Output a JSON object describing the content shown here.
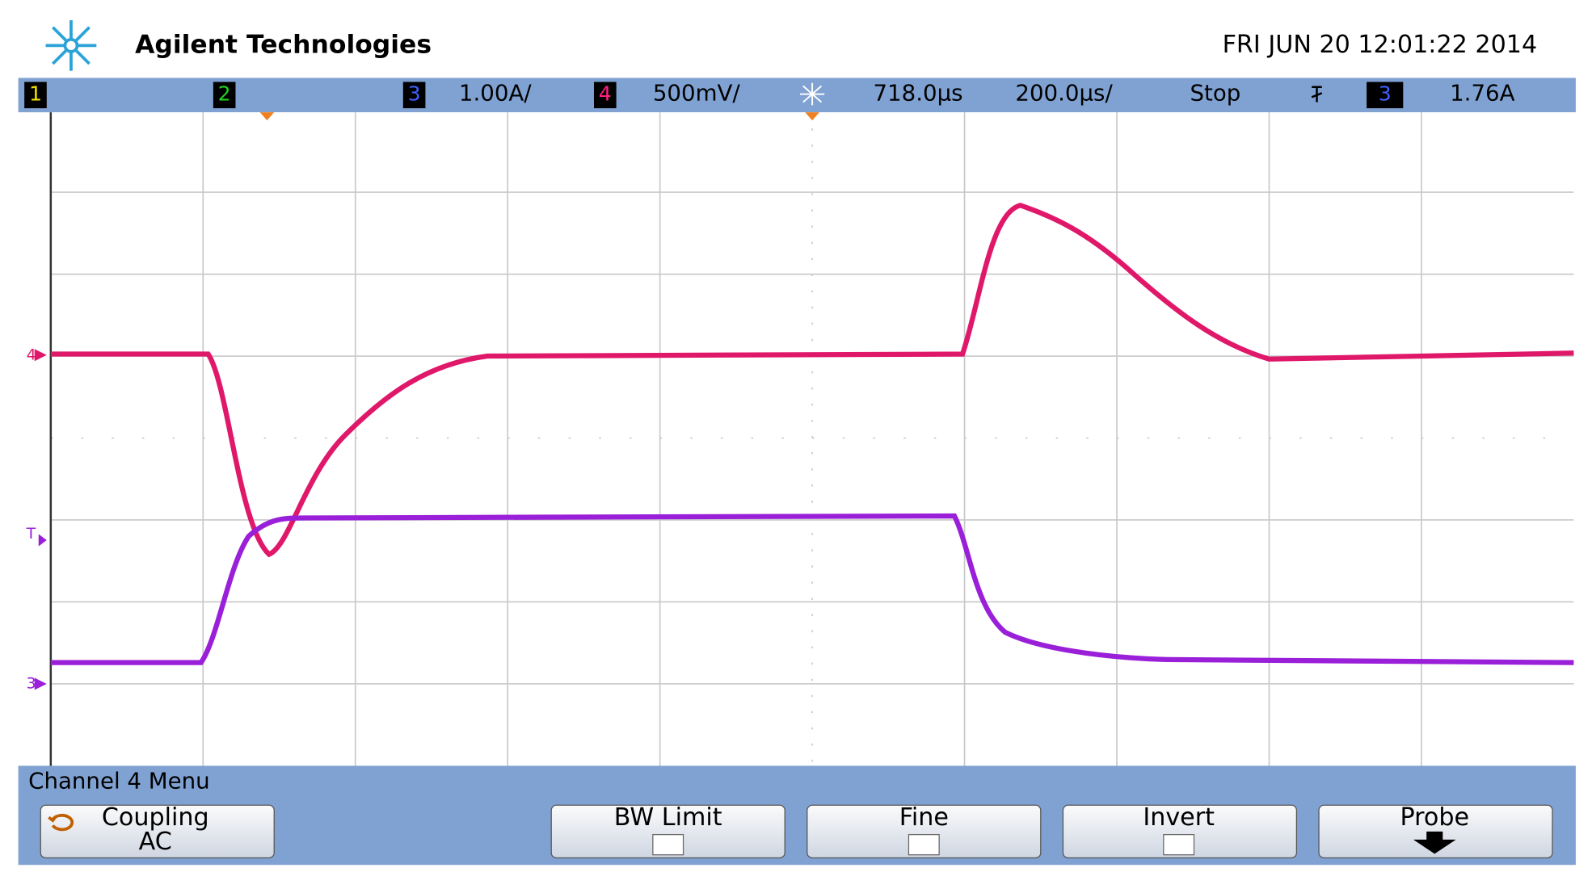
{
  "header": {
    "brand": "Agilent Technologies",
    "datetime": "FRI JUN 20 12:01:22 2014"
  },
  "status_bar": {
    "ch1": "1",
    "ch2": "2",
    "ch3": "3",
    "ch3_scale": "1.00A/",
    "ch4": "4",
    "ch4_scale": "500mV/",
    "delay": "718.0µs",
    "timebase": "200.0µs/",
    "run_state": "Stop",
    "trigger_channel": "3",
    "trigger_level": "1.76A"
  },
  "markers": {
    "ch4": "4",
    "trigger": "T",
    "ch3": "3"
  },
  "menu": {
    "title": "Channel 4 Menu",
    "buttons": [
      {
        "label": "Coupling",
        "value": "AC"
      },
      {
        "label": "BW Limit"
      },
      {
        "label": "Fine"
      },
      {
        "label": "Invert"
      },
      {
        "label": "Probe"
      }
    ]
  }
}
